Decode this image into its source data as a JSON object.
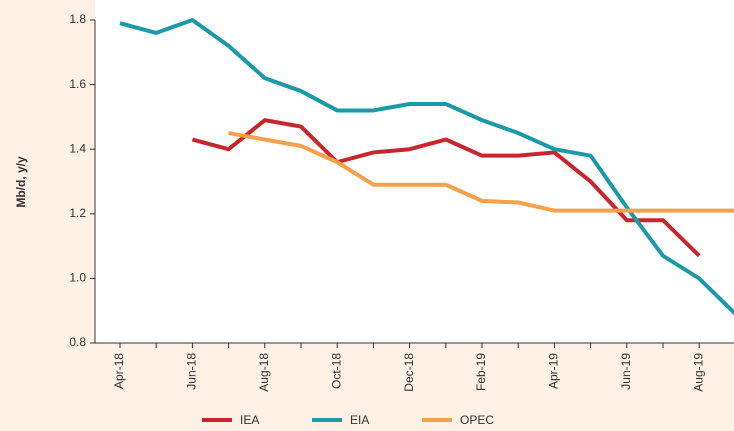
{
  "chart_data": {
    "type": "line",
    "y_label": "Mb/d, y/y",
    "categories": [
      "Apr-18",
      null,
      "Jun-18",
      null,
      "Aug-18",
      null,
      "Oct-18",
      null,
      "Dec-18",
      null,
      "Feb-19",
      null,
      "Apr-19",
      null,
      "Jun-19",
      null,
      "Aug-19",
      null
    ],
    "series": [
      {
        "name": "IEA",
        "color": "#c8262c",
        "values": [
          null,
          null,
          1.43,
          1.4,
          1.49,
          1.47,
          1.36,
          1.39,
          1.4,
          1.43,
          1.38,
          1.38,
          1.39,
          1.3,
          1.18,
          1.18,
          1.07,
          null
        ]
      },
      {
        "name": "EIA",
        "color": "#1a9aa8",
        "values": [
          1.79,
          1.76,
          1.8,
          1.72,
          1.62,
          1.58,
          1.52,
          1.52,
          1.54,
          1.54,
          1.49,
          1.45,
          1.4,
          1.38,
          1.22,
          1.07,
          1.0,
          0.89
        ]
      },
      {
        "name": "OPEC",
        "color": "#f7a04a",
        "values": [
          null,
          null,
          null,
          1.45,
          1.43,
          1.41,
          1.36,
          1.29,
          1.29,
          1.29,
          1.24,
          1.235,
          1.21,
          1.21,
          1.21,
          1.21,
          1.21,
          1.21
        ]
      }
    ],
    "ylim": [
      0.8,
      1.8
    ],
    "yticks": [
      0.8,
      {
        "value": 1,
        "label": "1.0"
      },
      1.2,
      1.4,
      1.6,
      1.8
    ],
    "legend": "bottom"
  }
}
